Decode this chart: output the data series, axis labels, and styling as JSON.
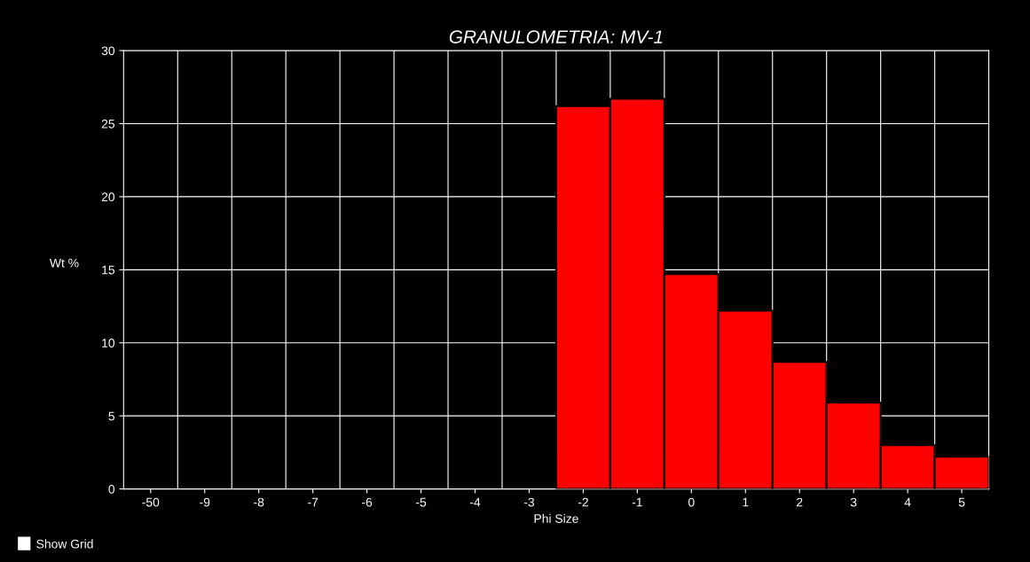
{
  "chart_data": {
    "type": "bar",
    "title": "GRANULOMETRIA: MV-1",
    "xlabel": "Phi Size",
    "ylabel": "Wt %",
    "categories": [
      "-50",
      "-9",
      "-8",
      "-7",
      "-6",
      "-5",
      "-4",
      "-3",
      "-2",
      "-1",
      "0",
      "1",
      "2",
      "3",
      "4",
      "5"
    ],
    "values": [
      null,
      null,
      null,
      null,
      null,
      null,
      null,
      null,
      26.2,
      26.7,
      14.7,
      12.2,
      8.7,
      5.9,
      3.0,
      2.2
    ],
    "color": "#ff0000",
    "ylim": [
      0,
      30
    ],
    "yticks": [
      0,
      5,
      10,
      15,
      20,
      25,
      30
    ],
    "grid": true,
    "annotations": [
      "Show Grid"
    ]
  }
}
